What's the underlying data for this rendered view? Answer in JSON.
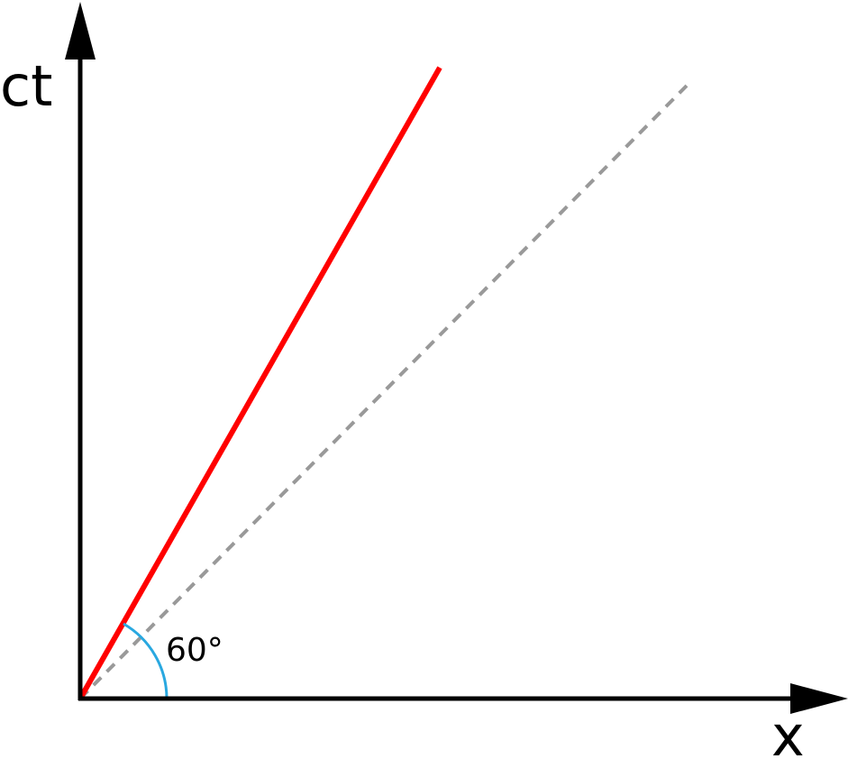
{
  "axes": {
    "vertical_label": "ct",
    "horizontal_label": "x"
  },
  "angle_label": "60°"
}
